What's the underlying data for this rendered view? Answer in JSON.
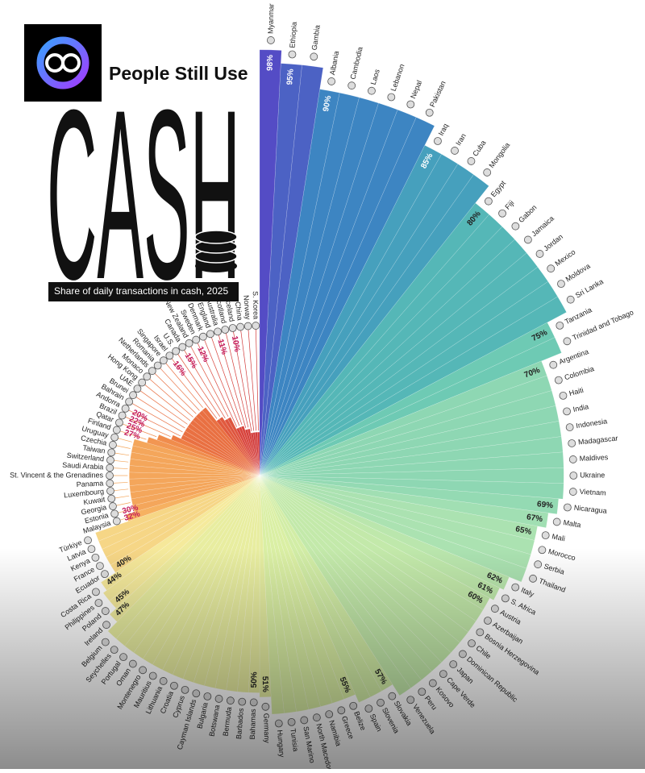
{
  "chart_data": {
    "type": "radial-bar",
    "title_prefix": "People Still Use",
    "title": "CASH",
    "subtitle": "Share of daily transactions in cash, 2025",
    "ylim": [
      0,
      100
    ],
    "colormap": [
      "#a3123d",
      "#d63e3a",
      "#ee7d44",
      "#f7b865",
      "#f6ea9c",
      "#d9efa4",
      "#a3e0b3",
      "#5cc2b4",
      "#3a8dc2",
      "#5a3ec6"
    ],
    "categories": [
      "Myanmar",
      "Ethiopia",
      "Gambia",
      "Albania",
      "Cambodia",
      "Laos",
      "Lebanon",
      "Nepal",
      "Pakistan",
      "Iraq",
      "Iran",
      "Cuba",
      "Mongolia",
      "Egypt",
      "Fiji",
      "Gabon",
      "Jamaica",
      "Jordan",
      "Mexico",
      "Moldova",
      "Sri Lanka",
      "Tanzania",
      "Trinidad and Tobago",
      "Argentina",
      "Colombia",
      "Haiti",
      "India",
      "Indonesia",
      "Madagascar",
      "Maldives",
      "Ukraine",
      "Vietnam",
      "Nicaragua",
      "Malta",
      "Mali",
      "Morocco",
      "Serbia",
      "Thailand",
      "Italy",
      "S. Africa",
      "Austria",
      "Azerbaijan",
      "Bosnia Herzegovina",
      "Chile",
      "Dominican Republic",
      "Japan",
      "Cape Verde",
      "Kosovo",
      "Peru",
      "Venezuela",
      "Slovakia",
      "Slovenia",
      "Spain",
      "Belize",
      "Greece",
      "Namibia",
      "North Macedonia",
      "San Marino",
      "Tunisia",
      "Hungary",
      "Germany",
      "Bahamas",
      "Barbados",
      "Bermuda",
      "Botswana",
      "Bulgaria",
      "Cayman Islands",
      "Cyprus",
      "Croatia",
      "Lithuania",
      "Mauritius",
      "Montenegro",
      "Oman",
      "Portugal",
      "Seychelles",
      "Belgium",
      "Ireland",
      "Poland",
      "Philippines",
      "Costa Rica",
      "Ecuador",
      "France",
      "Kenya",
      "Latvia",
      "Türkiye",
      "Malaysia",
      "Estonia",
      "Georgia",
      "Kuwait",
      "Luxembourg",
      "Panama",
      "St. Vincent & the Grenadines",
      "Saudi Arabia",
      "Switzerland",
      "Taiwan",
      "Czechia",
      "Uruguay",
      "Finland",
      "Qatar",
      "Brazil",
      "Andorra",
      "Bahrain",
      "Brunei",
      "UAE",
      "Hong Kong",
      "Monaco",
      "Netherlands",
      "Romania",
      "Singapore",
      "Israel",
      "U.S.",
      "Canada",
      "New Zealand",
      "Sweden",
      "Denmark",
      "England",
      "Australia",
      "Scotland",
      "Iceland",
      "China",
      "Norway",
      "S. Korea"
    ],
    "values": [
      98,
      95,
      95,
      90,
      90,
      90,
      90,
      90,
      90,
      85,
      85,
      85,
      85,
      80,
      80,
      80,
      80,
      80,
      80,
      80,
      80,
      75,
      75,
      70,
      70,
      70,
      70,
      70,
      70,
      70,
      70,
      70,
      69,
      67,
      65,
      65,
      65,
      65,
      62,
      61,
      60,
      60,
      60,
      60,
      60,
      60,
      60,
      60,
      60,
      60,
      57,
      57,
      57,
      55,
      55,
      55,
      55,
      55,
      55,
      55,
      51,
      50,
      50,
      50,
      50,
      50,
      50,
      50,
      50,
      50,
      50,
      50,
      50,
      50,
      50,
      50,
      47,
      45,
      45,
      44,
      40,
      40,
      40,
      40,
      40,
      32,
      30,
      30,
      30,
      30,
      30,
      30,
      30,
      30,
      30,
      30,
      30,
      27,
      25,
      22,
      20,
      20,
      20,
      20,
      20,
      20,
      20,
      20,
      20,
      16,
      16,
      15,
      15,
      12,
      12,
      12,
      11,
      11,
      10,
      10,
      10,
      10
    ],
    "value_labels": [
      "98%",
      "95%",
      null,
      "90%",
      null,
      null,
      null,
      null,
      null,
      "85%",
      null,
      null,
      null,
      "80%",
      null,
      null,
      null,
      null,
      null,
      null,
      null,
      "75%",
      null,
      "70%",
      null,
      null,
      null,
      null,
      null,
      null,
      null,
      null,
      "69%",
      "67%",
      "65%",
      null,
      null,
      null,
      "62%",
      "61%",
      "60%",
      null,
      null,
      null,
      null,
      null,
      null,
      null,
      null,
      null,
      "57%",
      null,
      null,
      "55%",
      null,
      null,
      null,
      null,
      null,
      null,
      "51%",
      "50%",
      null,
      null,
      null,
      null,
      null,
      null,
      null,
      null,
      null,
      null,
      null,
      null,
      null,
      null,
      "47%",
      "45%",
      null,
      "44%",
      "40%",
      null,
      null,
      null,
      null,
      "32%",
      "30%",
      null,
      null,
      null,
      null,
      null,
      null,
      null,
      null,
      null,
      null,
      "27%",
      "25%",
      "22%",
      "20%",
      null,
      null,
      null,
      null,
      null,
      null,
      null,
      null,
      "16%",
      null,
      "15%",
      null,
      "12%",
      null,
      null,
      "11%",
      null,
      "10%",
      null,
      null,
      null
    ]
  }
}
